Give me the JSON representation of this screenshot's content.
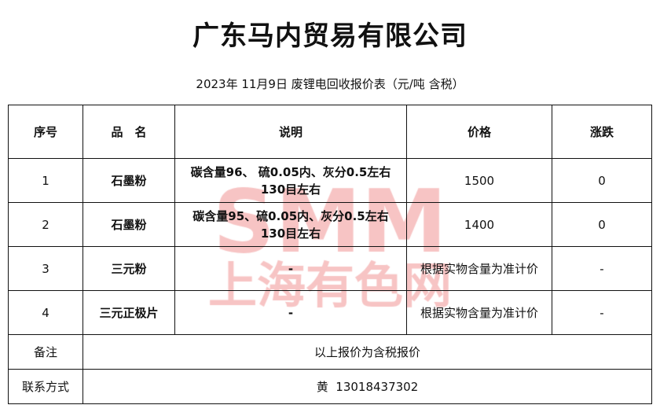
{
  "title": "广东马内贸易有限公司",
  "subtitle": "2023年 11月9日 废锂电回收报价表（元/吨  含税）",
  "table": {
    "headers": [
      "序号",
      "品　名",
      "说明",
      "价格",
      "涨跌"
    ],
    "rows": [
      {
        "no": "1",
        "name": "石墨粉",
        "desc_line1": "碳含量96、 硫0.05内、灰分0.5左右",
        "desc_line2": "130目左右",
        "price": "1500",
        "change": "0"
      },
      {
        "no": "2",
        "name": "石墨粉",
        "desc_line1": "碳含量95、硫0.05内、灰分0.5左右",
        "desc_line2": "130目左右",
        "price": "1400",
        "change": "0"
      },
      {
        "no": "3",
        "name": "三元粉",
        "desc_line1": "-",
        "desc_line2": "",
        "price": "根据实物含量为准计价",
        "change": "-"
      },
      {
        "no": "4",
        "name": "三元正极片",
        "desc_line1": "-",
        "desc_line2": "",
        "price": "根据实物含量为准计价",
        "change": "-"
      }
    ],
    "remark_label": "备注",
    "remark": "以上报价为含税报价",
    "contact_label": "联系方式",
    "contact": "黄  13018437302"
  },
  "watermark": {
    "text1": "SMM",
    "text2": "上海有色网",
    "color": "#f08a8a"
  }
}
